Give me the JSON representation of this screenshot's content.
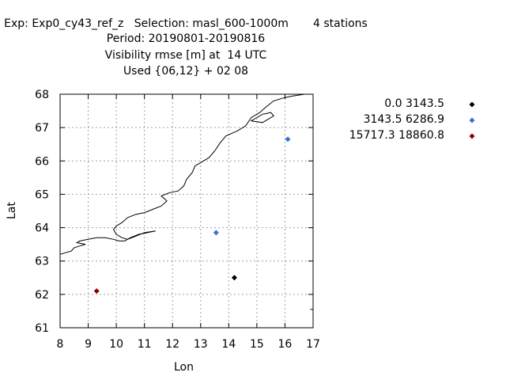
{
  "header": {
    "line1": "Exp: Exp0_cy43_ref_z   Selection: masl_600-1000m       4 stations",
    "line2": "Period: 20190801-20190816",
    "line3": "Visibility rmse [m] at  14 UTC",
    "line4": "Used {06,12} + 02 08"
  },
  "chart_data": {
    "type": "scatter",
    "title": "Visibility rmse [m] at  14 UTC",
    "xlabel": "Lon",
    "ylabel": "Lat",
    "xlim": [
      8,
      17
    ],
    "ylim": [
      61,
      68
    ],
    "xticks": [
      "8",
      "9",
      "10",
      "11",
      "12",
      "13",
      "14",
      "15",
      "16",
      "17"
    ],
    "yticks": [
      "61",
      "62",
      "63",
      "64",
      "65",
      "66",
      "67",
      "68"
    ],
    "grid": true,
    "legend_position": "top-right",
    "legend": [
      {
        "label": "0.0 3143.5",
        "color": "#000000"
      },
      {
        "label": "3143.5 6286.9",
        "color": "#3a6fdc"
      },
      {
        "label": "15717.3 18860.8",
        "color": "#8b0000"
      }
    ],
    "series": [
      {
        "name": "0.0 3143.5",
        "color": "#000000",
        "points": [
          {
            "x": 14.2,
            "y": 62.5
          }
        ]
      },
      {
        "name": "3143.5 6286.9",
        "color": "#3a6fdc",
        "points": [
          {
            "x": 13.55,
            "y": 63.85
          },
          {
            "x": 16.1,
            "y": 66.65
          }
        ]
      },
      {
        "name": "15717.3 18860.8",
        "color": "#8b0000",
        "points": [
          {
            "x": 9.3,
            "y": 62.1
          }
        ]
      }
    ],
    "coastline": [
      [
        [
          8.0,
          63.2
        ],
        [
          8.2,
          63.25
        ],
        [
          8.4,
          63.3
        ],
        [
          8.5,
          63.4
        ],
        [
          8.7,
          63.45
        ],
        [
          8.9,
          63.5
        ],
        [
          8.6,
          63.55
        ],
        [
          8.7,
          63.6
        ],
        [
          9.0,
          63.65
        ],
        [
          9.3,
          63.7
        ],
        [
          9.6,
          63.7
        ],
        [
          9.9,
          63.65
        ],
        [
          10.1,
          63.6
        ],
        [
          10.3,
          63.6
        ],
        [
          10.5,
          63.7
        ],
        [
          10.8,
          63.8
        ],
        [
          11.1,
          63.85
        ],
        [
          11.4,
          63.9
        ],
        [
          11.0,
          63.85
        ],
        [
          10.7,
          63.75
        ],
        [
          10.4,
          63.65
        ],
        [
          10.2,
          63.7
        ],
        [
          10.0,
          63.8
        ],
        [
          9.9,
          63.95
        ],
        [
          10.0,
          64.05
        ],
        [
          10.2,
          64.15
        ],
        [
          10.4,
          64.3
        ],
        [
          10.7,
          64.4
        ],
        [
          11.0,
          64.45
        ],
        [
          11.3,
          64.55
        ],
        [
          11.6,
          64.65
        ],
        [
          11.8,
          64.8
        ],
        [
          11.6,
          64.95
        ],
        [
          11.9,
          65.05
        ],
        [
          12.2,
          65.1
        ],
        [
          12.4,
          65.25
        ],
        [
          12.5,
          65.45
        ],
        [
          12.7,
          65.65
        ],
        [
          12.8,
          65.85
        ],
        [
          13.0,
          65.95
        ],
        [
          13.3,
          66.1
        ],
        [
          13.5,
          66.3
        ],
        [
          13.7,
          66.55
        ],
        [
          13.9,
          66.75
        ],
        [
          14.3,
          66.9
        ],
        [
          14.6,
          67.05
        ],
        [
          14.8,
          67.3
        ],
        [
          15.1,
          67.45
        ],
        [
          15.3,
          67.6
        ],
        [
          15.6,
          67.8
        ],
        [
          16.0,
          67.9
        ],
        [
          16.3,
          67.95
        ],
        [
          16.7,
          68.0
        ]
      ],
      [
        [
          15.0,
          67.3
        ],
        [
          14.8,
          67.2
        ],
        [
          15.2,
          67.15
        ],
        [
          15.6,
          67.35
        ],
        [
          15.5,
          67.45
        ],
        [
          15.2,
          67.4
        ],
        [
          15.0,
          67.3
        ]
      ],
      [
        [
          16.9,
          61.55
        ],
        [
          17.0,
          61.55
        ]
      ]
    ]
  }
}
